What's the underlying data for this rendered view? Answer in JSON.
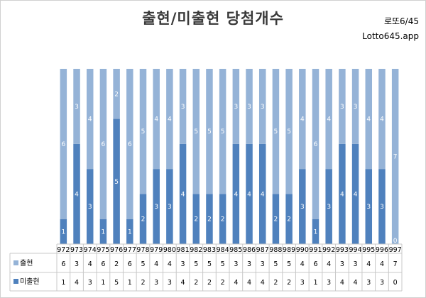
{
  "brand": {
    "line1": "로또6/45",
    "line2": "Lotto645.app"
  },
  "chart_data": {
    "type": "bar",
    "stacked": true,
    "percent_stacked": true,
    "title": "출현/미출현 당첨개수",
    "categories": [
      "972",
      "973",
      "974",
      "975",
      "976",
      "977",
      "978",
      "979",
      "980",
      "981",
      "982",
      "983",
      "984",
      "985",
      "986",
      "987",
      "988",
      "989",
      "990",
      "991",
      "992",
      "993",
      "994",
      "995",
      "996",
      "997"
    ],
    "series": [
      {
        "name": "미출현",
        "color": "#4f81bd",
        "values": [
          1,
          4,
          3,
          1,
          5,
          1,
          2,
          3,
          3,
          4,
          2,
          2,
          2,
          4,
          4,
          4,
          2,
          2,
          3,
          1,
          3,
          4,
          4,
          3,
          3,
          0
        ]
      },
      {
        "name": "출현",
        "color": "#95b3d7",
        "values": [
          6,
          3,
          4,
          6,
          2,
          6,
          5,
          4,
          4,
          3,
          5,
          5,
          5,
          3,
          3,
          3,
          5,
          5,
          4,
          6,
          4,
          3,
          3,
          4,
          4,
          7
        ]
      }
    ],
    "legend": "data-table",
    "grid": false
  }
}
